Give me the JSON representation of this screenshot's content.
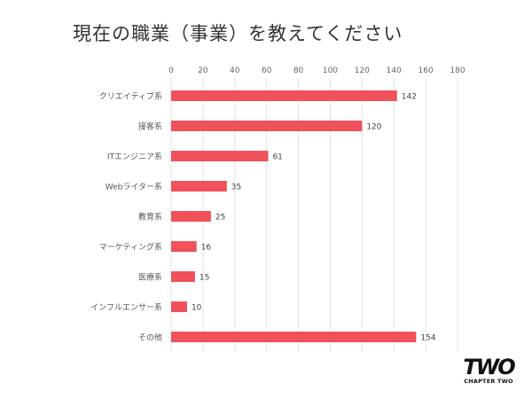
{
  "chart_data": {
    "type": "bar",
    "orientation": "horizontal",
    "title": "現在の職業（事業）を教えてください",
    "categories": [
      "クリエイティブ系",
      "接客系",
      "ITエンジニア系",
      "Webライター系",
      "教育系",
      "マーケティング系",
      "医療系",
      "インフルエンサー系",
      "その他"
    ],
    "values": [
      142,
      120,
      61,
      35,
      25,
      16,
      15,
      10,
      154
    ],
    "xlim": [
      0,
      180
    ],
    "ticks": [
      0,
      20,
      40,
      60,
      80,
      100,
      120,
      140,
      160,
      180
    ],
    "axis_position": "top",
    "grid": true,
    "data_labels": true,
    "bar_color": "#f0515a",
    "grid_color": "#e3e3e3"
  },
  "logo": {
    "mark": "TWO",
    "text": "CHAPTER TWO"
  }
}
